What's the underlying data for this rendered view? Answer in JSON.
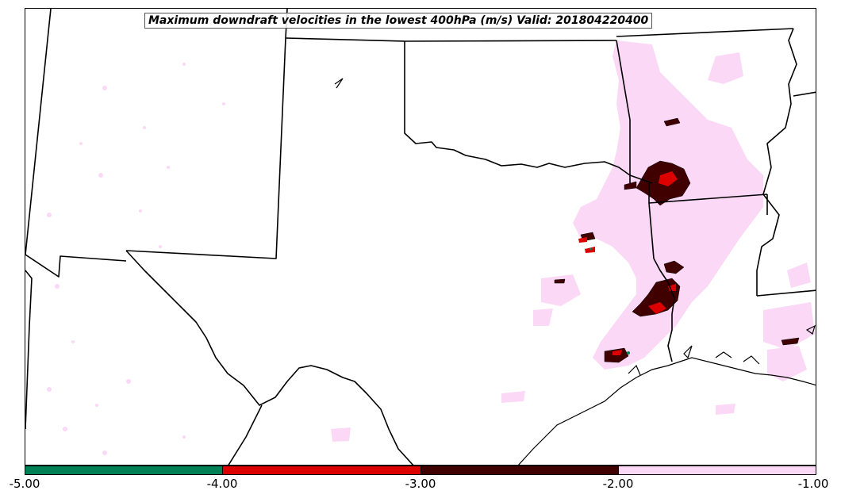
{
  "map": {
    "title": "Maximum downdraft velocities in the lowest 400hPa (m/s) Valid: 201804220400",
    "region_features": [
      "state-boundaries",
      "coastline",
      "downdraft-contours"
    ]
  },
  "colorbar": {
    "segments": [
      {
        "label": "-5.00 to -4.00",
        "color": "#008055"
      },
      {
        "label": "-4.00 to -3.00",
        "color": "#dd0000"
      },
      {
        "label": "-3.00 to -2.00",
        "color": "#400000"
      },
      {
        "label": "-2.00 to -1.00",
        "color": "#fbd8f6"
      }
    ],
    "ticks": [
      "-5.00",
      "-4.00",
      "-3.00",
      "-2.00",
      "-1.00"
    ]
  },
  "colors": {
    "light_contour": "#fbd8f6",
    "dark_contour": "#400000",
    "red_contour": "#dd0000",
    "green_contour": "#008055",
    "boundary": "#000000"
  }
}
